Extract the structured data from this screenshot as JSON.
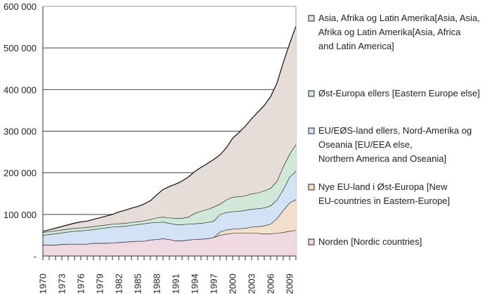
{
  "chart_data": {
    "type": "area",
    "stacked": true,
    "title": "",
    "xlabel": "",
    "ylabel": "",
    "ylim": [
      0,
      600000
    ],
    "yticks": [
      0,
      100000,
      200000,
      300000,
      400000,
      500000,
      600000
    ],
    "ytick_labels": [
      "-",
      "100 000",
      "200 000",
      "300 000",
      "400 000",
      "500 000",
      "600 000"
    ],
    "x": [
      1970,
      1971,
      1972,
      1973,
      1974,
      1975,
      1976,
      1977,
      1978,
      1979,
      1980,
      1981,
      1982,
      1983,
      1984,
      1985,
      1986,
      1987,
      1988,
      1989,
      1990,
      1991,
      1992,
      1993,
      1994,
      1995,
      1996,
      1997,
      1998,
      1999,
      2000,
      2001,
      2002,
      2003,
      2004,
      2005,
      2006,
      2007,
      2008,
      2009,
      2010
    ],
    "xtick_labels": [
      "1970",
      "1973",
      "1976",
      "1979",
      "1982",
      "1985",
      "1988",
      "1991",
      "1994",
      "1997",
      "2000",
      "2003",
      "2006",
      "2009"
    ],
    "grid": "horizontal",
    "legend_placement": "right",
    "series": [
      {
        "name": "Norden [Nordic countries]",
        "color": "#efd9e2",
        "values": [
          27000,
          27000,
          27000,
          28000,
          29000,
          29000,
          29000,
          29000,
          31000,
          31000,
          31000,
          32000,
          33000,
          34000,
          35000,
          36000,
          36000,
          39000,
          40000,
          42000,
          40000,
          37000,
          37000,
          39000,
          40000,
          41000,
          42000,
          45000,
          50000,
          53000,
          55000,
          55000,
          55000,
          55000,
          55000,
          53000,
          54000,
          55000,
          57000,
          60000,
          62000
        ]
      },
      {
        "name": "Nye EU-land i Øst-Europa [New EU-countries in Eastern-Europe]",
        "color": "#f2e0cc",
        "values": [
          0,
          0,
          0,
          0,
          0,
          0,
          0,
          0,
          0,
          0,
          0,
          0,
          0,
          0,
          0,
          0,
          0,
          0,
          0,
          0,
          0,
          0,
          0,
          0,
          0,
          0,
          0,
          0,
          8000,
          10000,
          10000,
          11000,
          12000,
          15000,
          16000,
          20000,
          23000,
          35000,
          53000,
          68000,
          74000
        ]
      },
      {
        "name": "EU/EØS-land ellers, Nord-Amerika og Oseania [EU/EEA else, Northern America and Oseania]",
        "color": "#d3e3f5",
        "values": [
          23000,
          25000,
          27000,
          28000,
          29000,
          31000,
          32000,
          33000,
          33000,
          35000,
          37000,
          38000,
          38000,
          38000,
          39000,
          40000,
          42000,
          41000,
          41000,
          40000,
          39000,
          39000,
          39000,
          38000,
          38000,
          38000,
          39000,
          39000,
          42000,
          42000,
          42000,
          42000,
          43000,
          43000,
          43000,
          43000,
          44000,
          45000,
          50000,
          62000,
          68000
        ]
      },
      {
        "name": "Øst-Europa ellers [Eastern Europe else]",
        "color": "#cfe8d8",
        "values": [
          7000,
          7000,
          7000,
          7000,
          7000,
          7000,
          7000,
          7000,
          7000,
          7000,
          7000,
          7000,
          7000,
          7000,
          7000,
          7000,
          7000,
          8000,
          11000,
          12000,
          13000,
          15000,
          15000,
          17000,
          25000,
          29000,
          31000,
          34000,
          25000,
          30000,
          35000,
          35000,
          35000,
          37000,
          38000,
          41000,
          42000,
          45000,
          55000,
          55000,
          64000
        ]
      },
      {
        "name": "Asia, Afrika og Latin Amerika[Asia, Asia, Afrika og Latin Amerika[Asia, Africa and Latin America]",
        "color": "#e6dcd8",
        "values": [
          2000,
          4000,
          6000,
          8000,
          10000,
          12000,
          14000,
          15000,
          17000,
          19000,
          21000,
          23000,
          28000,
          31000,
          34000,
          36000,
          40000,
          45000,
          55000,
          66000,
          75000,
          82000,
          89000,
          96000,
          100000,
          105000,
          110000,
          114000,
          118000,
          125000,
          141000,
          154000,
          167000,
          180000,
          194000,
          205000,
          220000,
          235000,
          250000,
          265000,
          284000
        ]
      }
    ],
    "legend": [
      {
        "lines": [
          "Asia, Afrika og Latin Amerika[Asia, Asia,",
          "Afrika og Latin Amerika[Asia, Africa",
          "and Latin America]"
        ]
      },
      {
        "lines": [
          "Øst-Europa ellers [Eastern Europe else]"
        ]
      },
      {
        "lines": [
          "EU/EØS-land ellers, Nord-Amerika og",
          "Oseania [EU/EEA else,",
          "Northern America and Oseania]"
        ]
      },
      {
        "lines": [
          "Nye EU-land i Øst-Europa [New",
          "EU-countries in Eastern-Europe]"
        ]
      },
      {
        "lines": [
          "Norden [Nordic countries]"
        ]
      }
    ]
  }
}
